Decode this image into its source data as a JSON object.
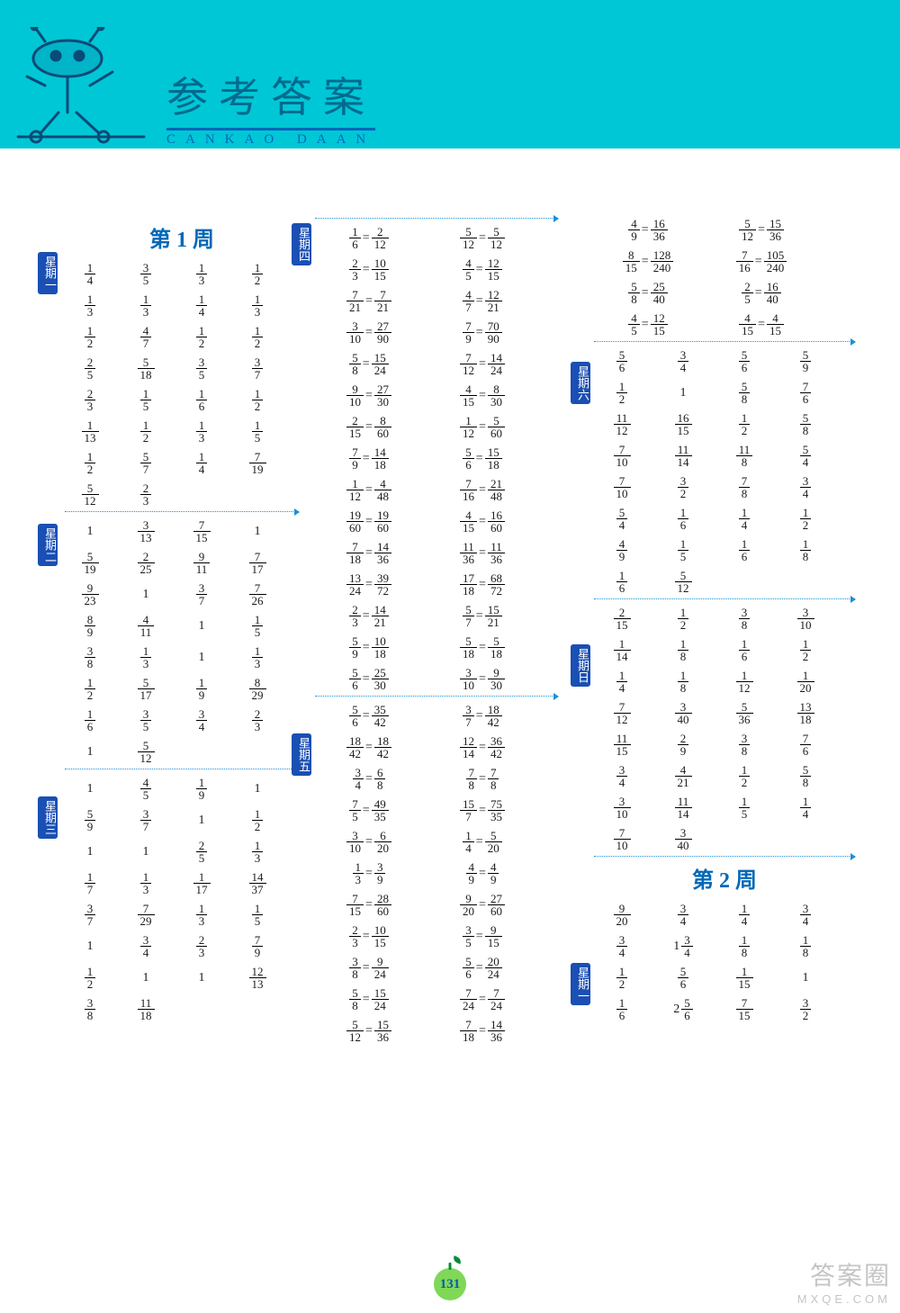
{
  "colors": {
    "header_bg": "#00c7d6",
    "header_accent": "#0068b7",
    "title_color": "#006a8e",
    "week_color": "#0068b7",
    "tag_bg": "#1a4fb3",
    "dot_line": "#1a90d8",
    "page_apple": "#7fd858",
    "page_text": "#0b5aa6",
    "text": "#1a1a1a"
  },
  "header": {
    "title_cn": "参考答案",
    "title_py": "CANKAO  DAAN"
  },
  "page_number": "131",
  "watermark": {
    "big": "答案圈",
    "url": "MXQE.COM"
  },
  "week1_title": "第 1 周",
  "week2_title": "第 2 周",
  "tags": {
    "d1": "星期一",
    "d2": "星期二",
    "d3": "星期三",
    "d4": "星期四",
    "d5": "星期五",
    "d6": "星期六",
    "d7": "星期日"
  },
  "col1": {
    "d1": [
      [
        "1/4",
        "3/5",
        "1/3",
        "1/2"
      ],
      [
        "1/3",
        "1/3",
        "1/4",
        "1/3"
      ],
      [
        "1/2",
        "4/7",
        "1/2",
        "1/2"
      ],
      [
        "2/5",
        "5/18",
        "3/5",
        "3/7"
      ],
      [
        "2/3",
        "1/5",
        "1/6",
        "1/2"
      ],
      [
        "1/13",
        "1/2",
        "1/3",
        "1/5"
      ],
      [
        "1/2",
        "5/7",
        "1/4",
        "7/19"
      ],
      [
        "5/12",
        "2/3",
        "",
        ""
      ]
    ],
    "d2": [
      [
        "1",
        "3/13",
        "7/15",
        "1"
      ],
      [
        "5/19",
        "2/25",
        "9/11",
        "7/17"
      ],
      [
        "9/23",
        "1",
        "3/7",
        "7/26"
      ],
      [
        "8/9",
        "4/11",
        "1",
        "1/5"
      ],
      [
        "3/8",
        "1/3",
        "1",
        "1/3"
      ],
      [
        "1/2",
        "5/17",
        "1/9",
        "8/29"
      ],
      [
        "1/6",
        "3/5",
        "3/4",
        "2/3"
      ],
      [
        "1",
        "5/12",
        "",
        ""
      ]
    ],
    "d3": [
      [
        "1",
        "4/5",
        "1/9",
        "1"
      ],
      [
        "5/9",
        "3/7",
        "1",
        "1/2"
      ],
      [
        "1",
        "1",
        "2/5",
        "1/3"
      ],
      [
        "1/7",
        "1/3",
        "1/17",
        "14/37"
      ],
      [
        "3/7",
        "7/29",
        "1/3",
        "1/5"
      ],
      [
        "1",
        "3/4",
        "2/3",
        "7/9"
      ],
      [
        "1/2",
        "1",
        "1",
        "12/13"
      ],
      [
        "3/8",
        "11/18",
        "",
        ""
      ]
    ]
  },
  "col2": {
    "d4": [
      [
        "1/6=2/12",
        "5/12=5/12"
      ],
      [
        "2/3=10/15",
        "4/5=12/15"
      ],
      [
        "7/21=7/21",
        "4/7=12/21"
      ],
      [
        "3/10=27/90",
        "7/9=70/90"
      ],
      [
        "5/8=15/24",
        "7/12=14/24"
      ],
      [
        "9/10=27/30",
        "4/15=8/30"
      ],
      [
        "2/15=8/60",
        "1/12=5/60"
      ],
      [
        "7/9=14/18",
        "5/6=15/18"
      ],
      [
        "1/12=4/48",
        "7/16=21/48"
      ],
      [
        "19/60=19/60",
        "4/15=16/60"
      ],
      [
        "7/18=14/36",
        "11/36=11/36"
      ],
      [
        "13/24=39/72",
        "17/18=68/72"
      ],
      [
        "2/3=14/21",
        "5/7=15/21"
      ],
      [
        "5/9=10/18",
        "5/18=5/18"
      ],
      [
        "5/6=25/30",
        "3/10=9/30"
      ]
    ],
    "d5": [
      [
        "5/6=35/42",
        "3/7=18/42"
      ],
      [
        "18/42=18/42",
        "12/14=36/42"
      ],
      [
        "3/4=6/8",
        "7/8=7/8"
      ],
      [
        "7/5=49/35",
        "15/7=75/35"
      ],
      [
        "3/10=6/20",
        "1/4=5/20"
      ],
      [
        "1/3=3/9",
        "4/9=4/9"
      ],
      [
        "7/15=28/60",
        "9/20=27/60"
      ],
      [
        "2/3=10/15",
        "3/5=9/15"
      ],
      [
        "3/8=9/24",
        "5/6=20/24"
      ],
      [
        "5/8=15/24",
        "7/24=7/24"
      ],
      [
        "5/12=15/36",
        "7/18=14/36"
      ]
    ]
  },
  "col3": {
    "top": [
      [
        "4/9=16/36",
        "5/12=15/36"
      ],
      [
        "8/15=128/240",
        "7/16=105/240"
      ],
      [
        "5/8=25/40",
        "2/5=16/40"
      ],
      [
        "4/5=12/15",
        "4/15=4/15"
      ]
    ],
    "d6": [
      [
        "5/6",
        "3/4",
        "5/6",
        "5/9"
      ],
      [
        "1/2",
        "1",
        "5/8",
        "7/6"
      ],
      [
        "11/12",
        "16/15",
        "1/2",
        "5/8"
      ],
      [
        "7/10",
        "11/14",
        "11/8",
        "5/4"
      ],
      [
        "7/10",
        "3/2",
        "7/8",
        "3/4"
      ],
      [
        "5/4",
        "1/6",
        "1/4",
        "1/2"
      ],
      [
        "4/9",
        "1/5",
        "1/6",
        "1/8"
      ],
      [
        "1/6",
        "5/12",
        "",
        ""
      ]
    ],
    "d7": [
      [
        "2/15",
        "1/2",
        "3/8",
        "3/10"
      ],
      [
        "1/14",
        "1/8",
        "1/6",
        "1/2"
      ],
      [
        "1/4",
        "1/8",
        "1/12",
        "1/20"
      ],
      [
        "7/12",
        "3/40",
        "5/36",
        "13/18"
      ],
      [
        "11/15",
        "2/9",
        "3/8",
        "7/6"
      ],
      [
        "3/4",
        "4/21",
        "1/2",
        "5/8"
      ],
      [
        "3/10",
        "11/14",
        "1/5",
        "1/4"
      ],
      [
        "7/10",
        "3/40",
        "",
        ""
      ]
    ],
    "w2d1": [
      [
        "9/20",
        "3/4",
        "1/4",
        "3/4"
      ],
      [
        "3/4",
        "1 3/4",
        "1/8",
        "1/8"
      ],
      [
        "1/2",
        "5/6",
        "1/15",
        "1"
      ],
      [
        "1/6",
        "2 5/6",
        "7/15",
        "3/2"
      ]
    ]
  }
}
